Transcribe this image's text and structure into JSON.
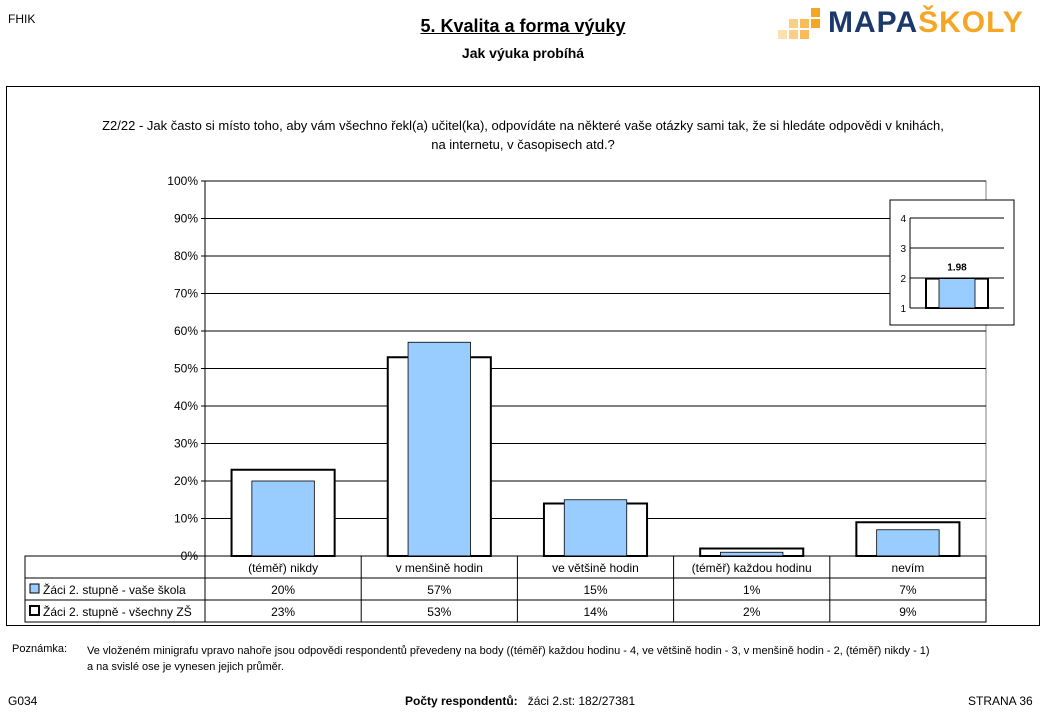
{
  "header": {
    "school_code": "FHIK",
    "title": "5. Kvalita a forma výuky",
    "subtitle": "Jak výuka probíhá",
    "logo_part1": "MAPA",
    "logo_part2": "ŠKOLY"
  },
  "chart_data": {
    "type": "bar",
    "title": "Z2/22 - Jak často si místo toho, aby vám všechno řekl(a) učitel(ka), odpovídáte na některé vaše otázky sami tak, že si hledáte odpovědi v knihách, na internetu, v časopisech atd.?",
    "title_line1": "Z2/22 - Jak často si místo toho, aby vám všechno řekl(a) učitel(ka), odpovídáte na některé vaše otázky sami tak, že si hledáte odpovědi v knihách,",
    "title_line2": "na internetu, v časopisech atd.?",
    "categories": [
      "(téměř) nikdy",
      "v menšině hodin",
      "ve většině hodin",
      "(téměř) každou hodinu",
      "nevím"
    ],
    "ylim": [
      0,
      100
    ],
    "yticks": [
      "0%",
      "10%",
      "20%",
      "30%",
      "40%",
      "50%",
      "60%",
      "70%",
      "80%",
      "90%",
      "100%"
    ],
    "series": [
      {
        "name": "Žáci 2. stupně - vaše škola",
        "values": [
          20,
          57,
          15,
          1,
          7
        ],
        "labels": [
          "20%",
          "57%",
          "15%",
          "1%",
          "7%"
        ],
        "color": "#99ccff"
      },
      {
        "name": "Žáci 2. stupně - všechny ZŠ",
        "values": [
          23,
          53,
          14,
          2,
          9
        ],
        "labels": [
          "23%",
          "53%",
          "14%",
          "2%",
          "9%"
        ],
        "color": "#ffffff"
      }
    ],
    "grid": true,
    "legend": "table-bottom",
    "inset": {
      "type": "bar",
      "ylim": [
        1,
        4
      ],
      "yticks": [
        "1",
        "2",
        "3",
        "4"
      ],
      "value": 1.98,
      "label": "1.98",
      "school_color": "#99ccff"
    }
  },
  "note": {
    "label": "Poznámka:",
    "line1": "Ve vloženém minigrafu vpravo nahoře jsou odpovědi respondentů převedeny na body ((téměř) každou hodinu - 4, ve většině hodin - 3, v menšině hodin - 2, (téměř) nikdy - 1)",
    "line2": "a na svislé ose je vynesen jejich průměr."
  },
  "footer": {
    "code": "G034",
    "respondents_label": "Počty respondentů:",
    "respondents_value": "žáci 2.st: 182/27381",
    "page": "STRANA 36"
  }
}
